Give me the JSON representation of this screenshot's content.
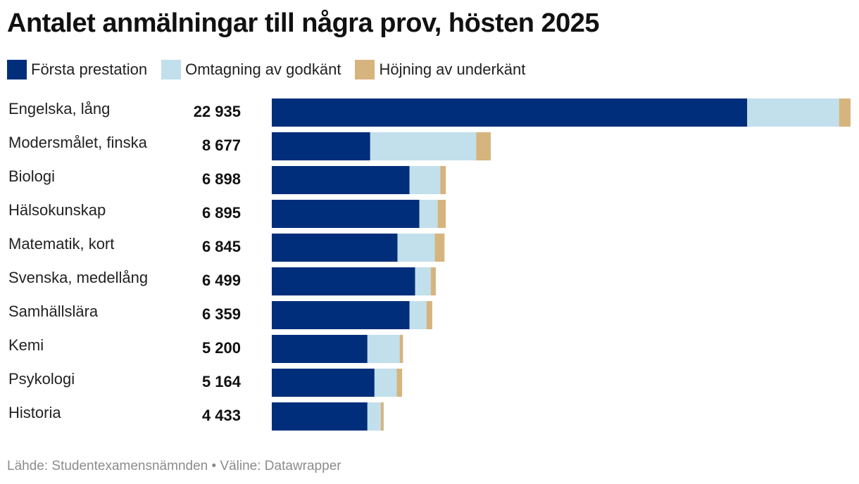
{
  "title": "Antalet anmälningar till några prov, hösten 2025",
  "legend": [
    {
      "label": "Första prestation",
      "color": "#002e7a"
    },
    {
      "label": "Omtagning av godkänt",
      "color": "#c2dfec"
    },
    {
      "label": "Höjning av underkänt",
      "color": "#d6b47e"
    }
  ],
  "footer": {
    "source": "Lähde: Studentexamensnämnden",
    "separator": "•",
    "tool": "Väline: Datawrapper"
  },
  "chart_data": {
    "type": "bar",
    "orientation": "horizontal",
    "stacked": true,
    "title": "Antalet anmälningar till några prov, hösten 2025",
    "categories": [
      "Engelska, lång",
      "Modersmålet, finska",
      "Biologi",
      "Hälsokunskap",
      "Matematik, kort",
      "Svenska, medellång",
      "Samhällslära",
      "Kemi",
      "Psykologi",
      "Historia"
    ],
    "totals": [
      22935,
      8677,
      6898,
      6895,
      6845,
      6499,
      6359,
      5200,
      5164,
      4433
    ],
    "total_labels": [
      "22 935",
      "8 677",
      "6 898",
      "6 895",
      "6 845",
      "6 499",
      "6 359",
      "5 200",
      "5 164",
      "4 433"
    ],
    "series": [
      {
        "name": "Första prestation",
        "color": "#002e7a",
        "values": [
          18840,
          3900,
          5460,
          5850,
          4980,
          5680,
          5460,
          3790,
          4070,
          3790
        ]
      },
      {
        "name": "Omtagning av godkänt",
        "color": "#c2dfec",
        "values": [
          3640,
          4200,
          1220,
          725,
          1480,
          620,
          670,
          1280,
          880,
          530
        ]
      },
      {
        "name": "Höjning av underkänt",
        "color": "#d6b47e",
        "values": [
          455,
          577,
          218,
          320,
          385,
          199,
          229,
          130,
          214,
          113
        ]
      }
    ],
    "xlim": [
      0,
      22935
    ],
    "grid": false,
    "legend_position": "top-left"
  }
}
